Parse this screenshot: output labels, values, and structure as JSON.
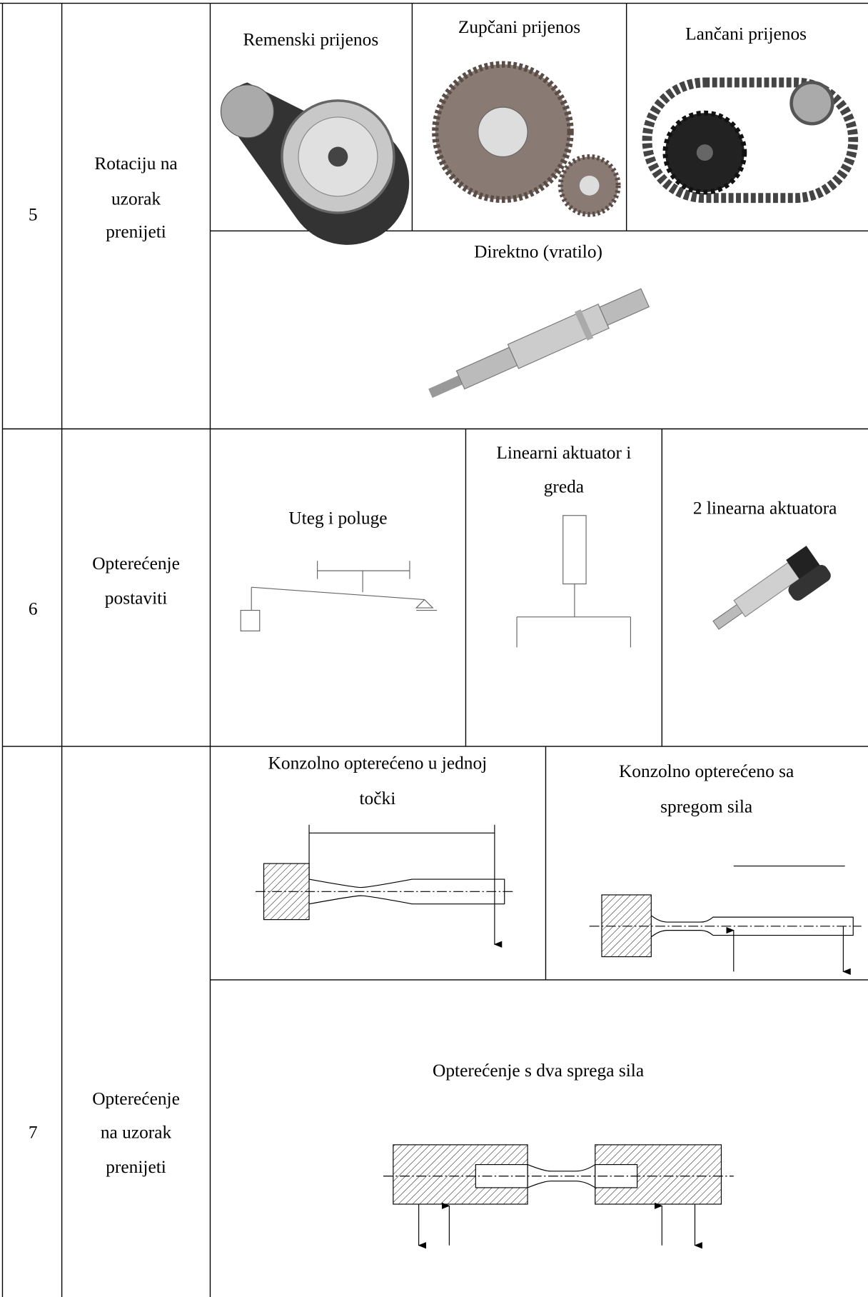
{
  "rows": [
    {
      "number": "5",
      "function": [
        "Rotaciju na",
        "uzorak",
        "prenijeti"
      ],
      "options": [
        {
          "label": [
            "Remenski prijenos"
          ]
        },
        {
          "label": [
            "Zupčani prijenos"
          ]
        },
        {
          "label": [
            "Lančani prijenos"
          ]
        },
        {
          "label": [
            "Direktno (vratilo)"
          ]
        }
      ]
    },
    {
      "number": "6",
      "function": [
        "Opterećenje",
        "postaviti"
      ],
      "options": [
        {
          "label": [
            "Uteg i poluge"
          ]
        },
        {
          "label": [
            "Linearni aktuator i",
            "greda"
          ]
        },
        {
          "label": [
            "2 linearna aktuatora"
          ]
        }
      ]
    },
    {
      "number": "7",
      "function": [
        "Opterećenje",
        "na uzorak",
        "prenijeti"
      ],
      "options": [
        {
          "label": [
            "Konzolno opterećeno u jednoj",
            "točki"
          ]
        },
        {
          "label": [
            "Konzolno opterećeno sa",
            "spregom sila"
          ]
        },
        {
          "label": [
            "Opterećenje s dva sprega sila"
          ]
        }
      ]
    }
  ]
}
